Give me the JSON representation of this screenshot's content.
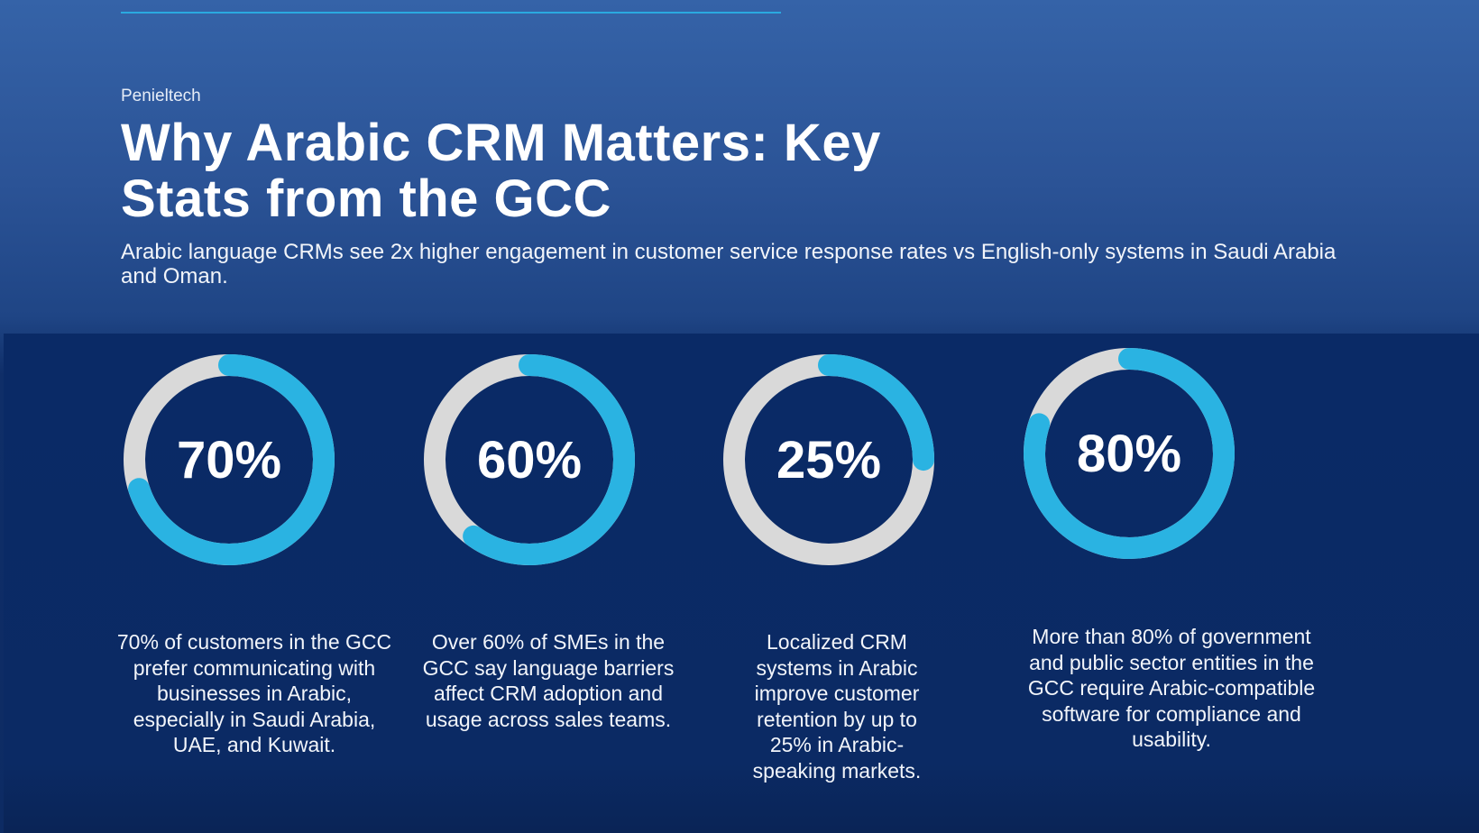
{
  "header": {
    "brand": "Penieltech",
    "title": "Why Arabic CRM Matters: Key Stats from the GCC",
    "subtitle": "Arabic language CRMs see 2x higher engagement in customer service response rates vs English-only systems in Saudi Arabia and Oman."
  },
  "colors": {
    "ring_fill": "#2ab3e2",
    "ring_track": "#d9d9d9",
    "accent_rule": "#2aa9e0"
  },
  "chart_data": [
    {
      "type": "pie",
      "style": "donut",
      "label": "70%",
      "value": 70,
      "max": 100,
      "description": "70% of customers in the GCC prefer communicating with businesses in Arabic, especially in Saudi Arabia, UAE, and Kuwait."
    },
    {
      "type": "pie",
      "style": "donut",
      "label": "60%",
      "value": 60,
      "max": 100,
      "description": "Over 60% of SMEs in the GCC say language barriers affect CRM adoption and usage across sales teams."
    },
    {
      "type": "pie",
      "style": "donut",
      "label": "25%",
      "value": 25,
      "max": 100,
      "description": "Localized CRM systems in Arabic improve customer retention by up to 25% in Arabic-speaking markets."
    },
    {
      "type": "pie",
      "style": "donut",
      "label": "80%",
      "value": 80,
      "max": 100,
      "description": "More than 80% of government and public sector entities in the GCC require Arabic-compatible software for compliance and usability."
    }
  ]
}
